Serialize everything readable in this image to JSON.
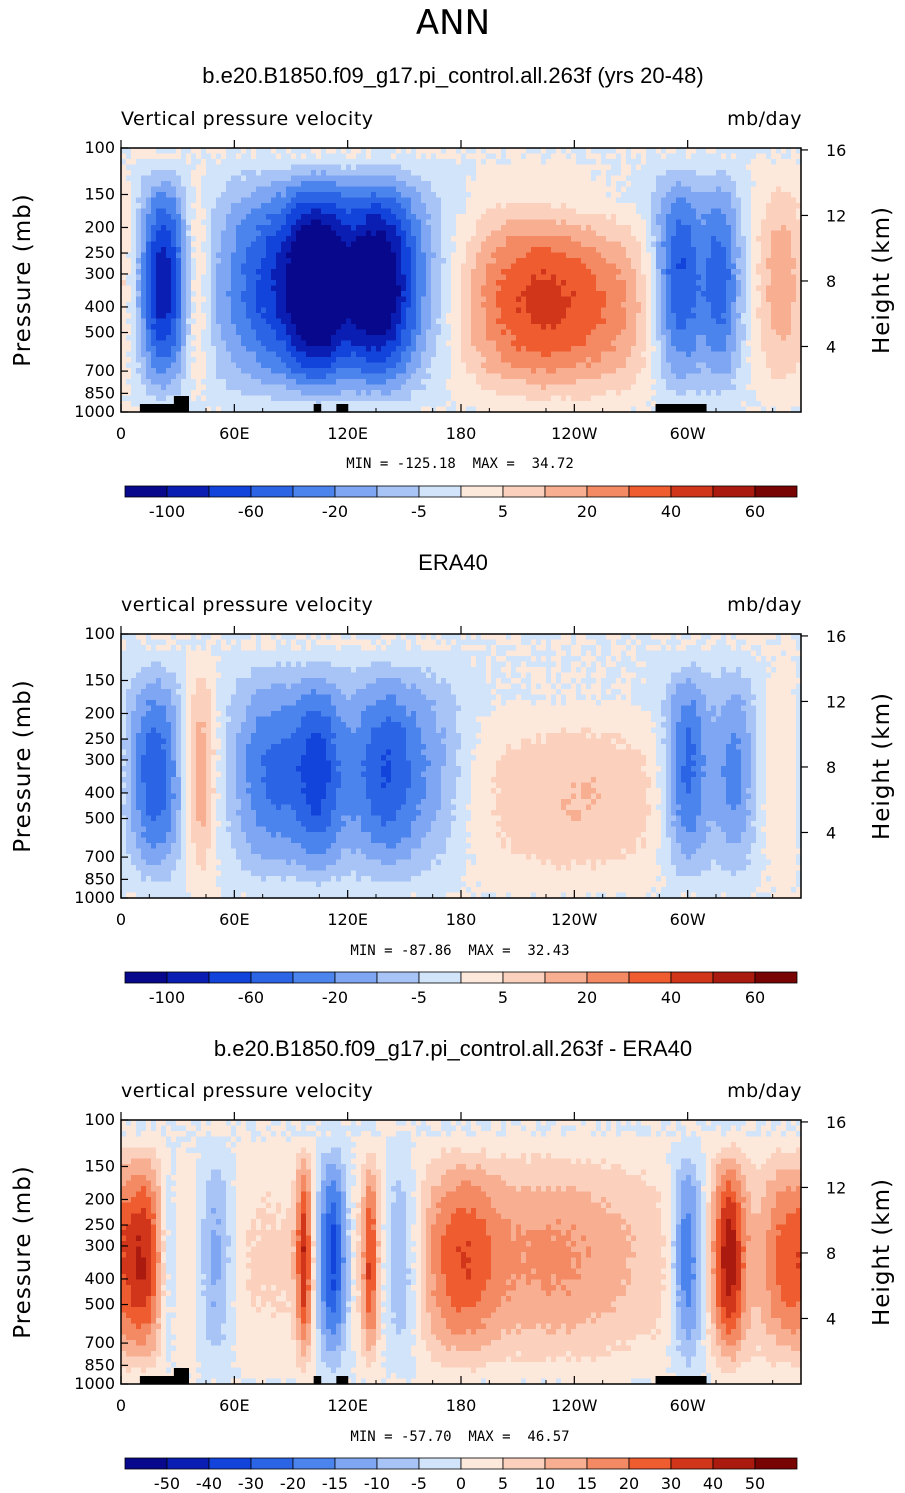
{
  "figure_title": "ANN",
  "colors": {
    "scale": [
      "#08088c",
      "#0a1eb4",
      "#1244dc",
      "#2c64e6",
      "#4c84ee",
      "#7ea6f2",
      "#a8c4f6",
      "#d2e4fa",
      "#fde8dc",
      "#fbd0bc",
      "#f8ae90",
      "#f48a64",
      "#ee5c30",
      "#d2361a",
      "#aa1a0e",
      "#780404"
    ]
  },
  "chart_data": [
    {
      "type": "heatmap",
      "title": "b.e20.B1850.f09_g17.pi_control.all.263f (yrs 20-48)",
      "left_label": "Vertical pressure velocity",
      "units": "mb/day",
      "ylabel": "Pressure (mb)",
      "y2label": "Height (km)",
      "y_ticks": [
        "100",
        "150",
        "200",
        "250",
        "300",
        "400",
        "500",
        "700",
        "850",
        "1000"
      ],
      "y2_ticks": [
        "16",
        "12",
        "8",
        "4"
      ],
      "x_ticks": [
        "0",
        "60E",
        "120E",
        "180",
        "120W",
        "60W"
      ],
      "min_label": "MIN = -125.18",
      "max_label": "MAX = 34.72",
      "stats": "MIN = -125.18  MAX =  34.72",
      "colorbar_labels": [
        "-100",
        "-60",
        "-20",
        "-5",
        "5",
        "20",
        "40",
        "60"
      ]
    },
    {
      "type": "heatmap",
      "title": "ERA40",
      "left_label": "vertical pressure velocity",
      "units": "mb/day",
      "ylabel": "Pressure (mb)",
      "y2label": "Height (km)",
      "y_ticks": [
        "100",
        "150",
        "200",
        "250",
        "300",
        "400",
        "500",
        "700",
        "850",
        "1000"
      ],
      "y2_ticks": [
        "16",
        "12",
        "8",
        "4"
      ],
      "x_ticks": [
        "0",
        "60E",
        "120E",
        "180",
        "120W",
        "60W"
      ],
      "min_label": "MIN = -87.86",
      "max_label": "MAX = 32.43",
      "stats": "MIN = -87.86  MAX =  32.43",
      "colorbar_labels": [
        "-100",
        "-60",
        "-20",
        "-5",
        "5",
        "20",
        "40",
        "60"
      ]
    },
    {
      "type": "heatmap",
      "title": "b.e20.B1850.f09_g17.pi_control.all.263f - ERA40",
      "left_label": "vertical pressure velocity",
      "units": "mb/day",
      "ylabel": "Pressure (mb)",
      "y2label": "Height (km)",
      "y_ticks": [
        "100",
        "150",
        "200",
        "250",
        "300",
        "400",
        "500",
        "700",
        "850",
        "1000"
      ],
      "y2_ticks": [
        "16",
        "12",
        "8",
        "4"
      ],
      "x_ticks": [
        "0",
        "60E",
        "120E",
        "180",
        "120W",
        "60W"
      ],
      "min_label": "MIN = -57.70",
      "max_label": "MAX = 46.57",
      "stats": "MIN = -57.70  MAX =  46.57",
      "colorbar_labels": [
        "-50",
        "-40",
        "-30",
        "-20",
        "-15",
        "-10",
        "-5",
        "0",
        "5",
        "10",
        "15",
        "20",
        "30",
        "40",
        "50"
      ]
    }
  ]
}
